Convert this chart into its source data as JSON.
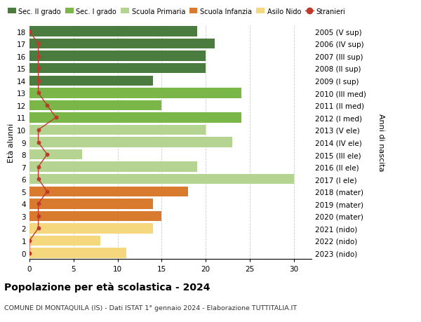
{
  "ages": [
    18,
    17,
    16,
    15,
    14,
    13,
    12,
    11,
    10,
    9,
    8,
    7,
    6,
    5,
    4,
    3,
    2,
    1,
    0
  ],
  "right_labels": [
    "2005 (V sup)",
    "2006 (IV sup)",
    "2007 (III sup)",
    "2008 (II sup)",
    "2009 (I sup)",
    "2010 (III med)",
    "2011 (II med)",
    "2012 (I med)",
    "2013 (V ele)",
    "2014 (IV ele)",
    "2015 (III ele)",
    "2016 (II ele)",
    "2017 (I ele)",
    "2018 (mater)",
    "2019 (mater)",
    "2020 (mater)",
    "2021 (nido)",
    "2022 (nido)",
    "2023 (nido)"
  ],
  "bar_values": [
    19,
    21,
    20,
    20,
    14,
    24,
    15,
    24,
    20,
    23,
    6,
    19,
    30,
    18,
    14,
    15,
    14,
    8,
    11
  ],
  "stranieri_values": [
    0,
    1,
    1,
    1,
    1,
    1,
    2,
    3,
    1,
    1,
    2,
    1,
    1,
    2,
    1,
    1,
    1,
    0,
    0
  ],
  "bar_colors": [
    "#4a7c3f",
    "#4a7c3f",
    "#4a7c3f",
    "#4a7c3f",
    "#4a7c3f",
    "#7ab648",
    "#7ab648",
    "#7ab648",
    "#b5d491",
    "#b5d491",
    "#b5d491",
    "#b5d491",
    "#b5d491",
    "#d97b2e",
    "#d97b2e",
    "#d97b2e",
    "#f5d87e",
    "#f5d87e",
    "#f5d87e"
  ],
  "legend_colors": [
    "#4a7c3f",
    "#7ab648",
    "#b5d491",
    "#d97b2e",
    "#f5d87e",
    "#c0392b"
  ],
  "legend_labels": [
    "Sec. II grado",
    "Sec. I grado",
    "Scuola Primaria",
    "Scuola Infanzia",
    "Asilo Nido",
    "Stranieri"
  ],
  "stranieri_color": "#c0392b",
  "title": "Popolazione per età scolastica - 2024",
  "subtitle": "COMUNE DI MONTAQUILA (IS) - Dati ISTAT 1° gennaio 2024 - Elaborazione TUTTITALIA.IT",
  "ylabel_left": "Età alunni",
  "ylabel_right": "Anni di nascita",
  "xlim": [
    0,
    32
  ],
  "xticks": [
    0,
    5,
    10,
    15,
    20,
    25,
    30
  ],
  "background_color": "#ffffff",
  "grid_color": "#cccccc"
}
